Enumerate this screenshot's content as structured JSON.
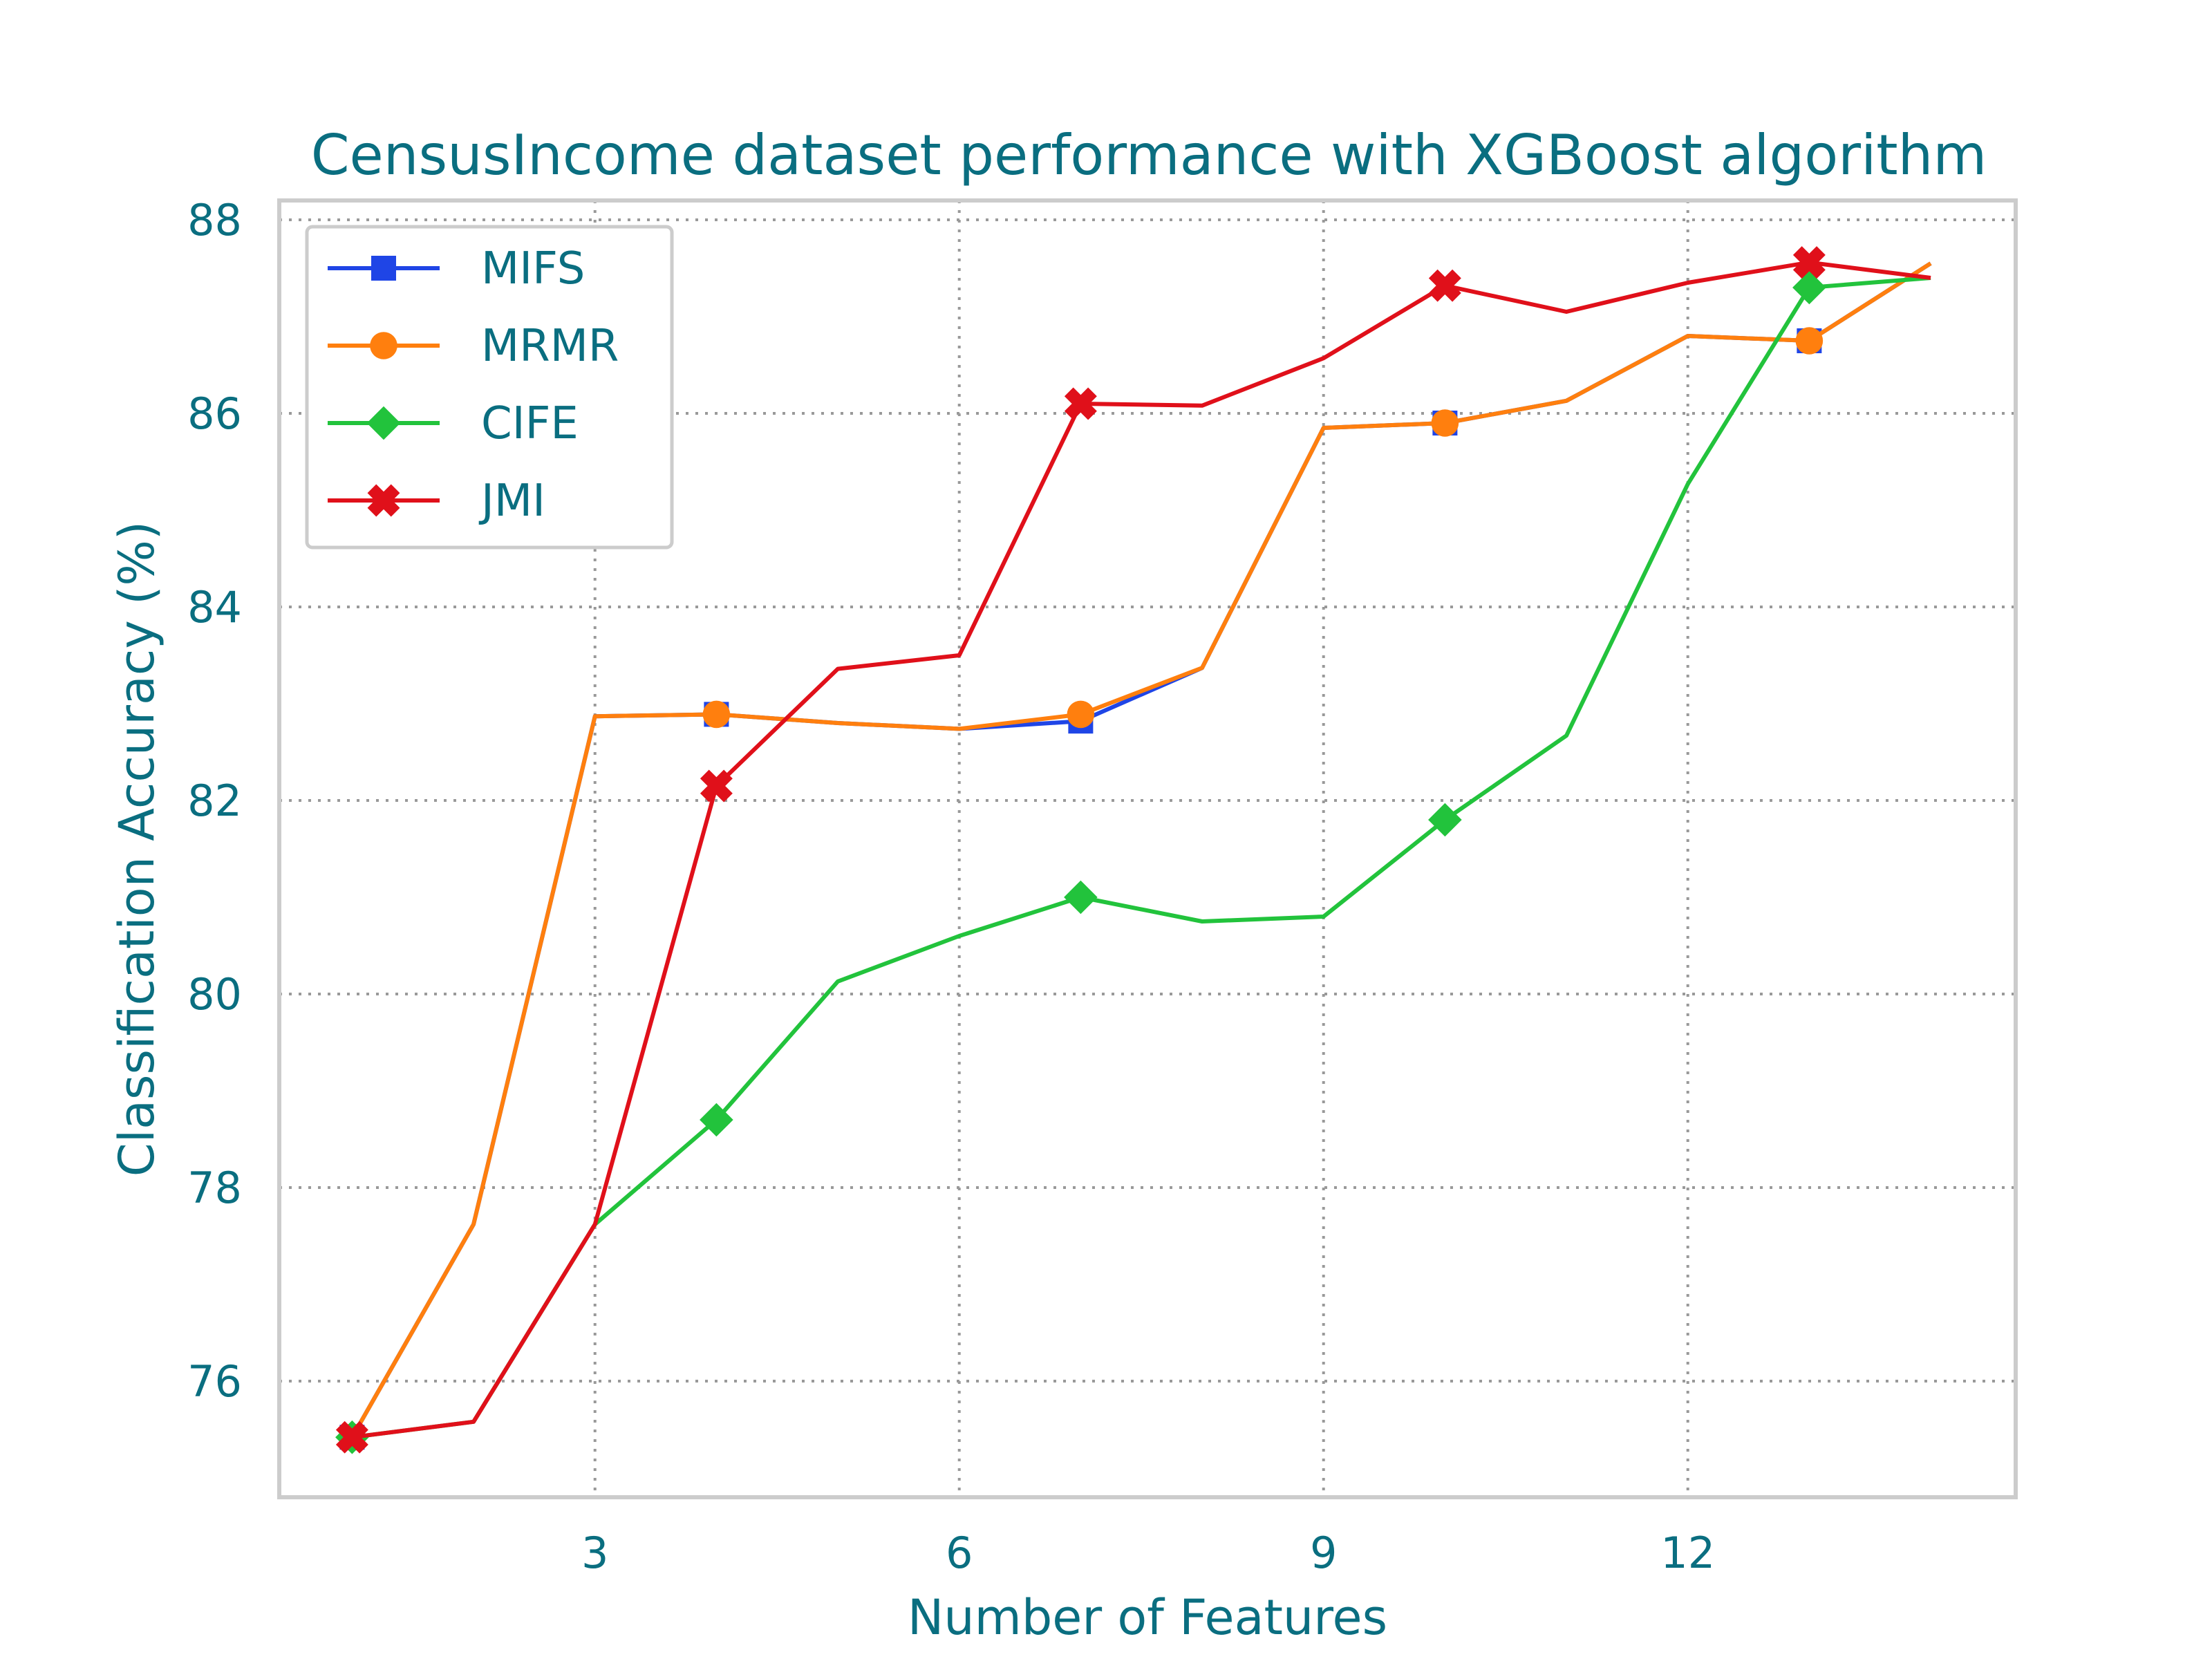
{
  "chart_data": {
    "type": "line",
    "title": "CensusIncome dataset performance with XGBoost algorithm",
    "xlabel": "Number of Features",
    "ylabel": "Classification Accuracy (%)",
    "xlim": [
      0.4,
      14.7
    ],
    "ylim": [
      74.8,
      88.2
    ],
    "xticks": [
      3,
      6,
      9,
      12
    ],
    "yticks": [
      76,
      78,
      80,
      82,
      84,
      86,
      88
    ],
    "grid": true,
    "legend_position": "top-left",
    "x": [
      1,
      2,
      3,
      4,
      5,
      6,
      7,
      8,
      9,
      10,
      11,
      12,
      13,
      14
    ],
    "series": [
      {
        "name": "MIFS",
        "color": "#1f45e6",
        "marker": "square",
        "values": [
          75.42,
          77.62,
          82.87,
          82.89,
          82.8,
          82.74,
          82.82,
          83.37,
          85.85,
          85.9,
          86.13,
          86.8,
          86.75,
          87.55
        ]
      },
      {
        "name": "MRMR",
        "color": "#ff7f0e",
        "marker": "circle",
        "values": [
          75.42,
          77.62,
          82.87,
          82.89,
          82.8,
          82.74,
          82.89,
          83.37,
          85.85,
          85.9,
          86.13,
          86.8,
          86.75,
          87.55
        ]
      },
      {
        "name": "CIFE",
        "color": "#22c33c",
        "marker": "diamond",
        "values": [
          75.42,
          75.58,
          77.62,
          78.7,
          80.13,
          80.6,
          81.0,
          80.75,
          80.8,
          81.8,
          82.67,
          85.27,
          87.3,
          87.4
        ]
      },
      {
        "name": "JMI",
        "color": "#e0101a",
        "marker": "x",
        "values": [
          75.42,
          75.58,
          77.62,
          82.15,
          83.36,
          83.5,
          86.1,
          86.08,
          86.57,
          87.32,
          87.05,
          87.35,
          87.56,
          87.4
        ]
      }
    ]
  }
}
